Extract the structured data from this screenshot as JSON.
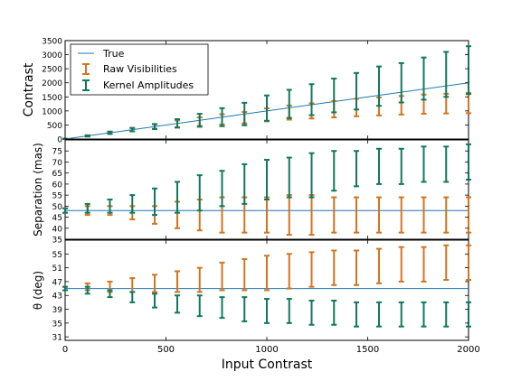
{
  "colors": {
    "true": "#1f77b4",
    "raw": "#d7731d",
    "kernel": "#0f7a5b",
    "axis": "#000000",
    "background": "#ffffff"
  },
  "legend": {
    "placement": "upper-left",
    "entries": [
      "True",
      "Raw Visibilities",
      "Kernel Amplitudes"
    ]
  },
  "chart_data": {
    "type": "errorbar",
    "x": [
      0,
      111,
      222,
      333,
      444,
      556,
      667,
      778,
      889,
      1000,
      1111,
      1222,
      1333,
      1444,
      1556,
      1667,
      1778,
      1889,
      2000
    ],
    "xlabel": "Input Contrast",
    "xlim": [
      0,
      2000
    ],
    "xticks": [
      0,
      500,
      1000,
      1500,
      2000
    ],
    "panels": [
      {
        "name": "contrast",
        "ylabel": "Contrast",
        "ylim": [
          0,
          3500
        ],
        "yticks": [
          0,
          500,
          1000,
          1500,
          2000,
          2500,
          3000,
          3500
        ],
        "true": [
          [
            0,
            0
          ],
          [
            2000,
            2000
          ]
        ],
        "raw": {
          "center": [
            0,
            111,
            222,
            333,
            444,
            540,
            620,
            700,
            760,
            860,
            940,
            1000,
            1060,
            1120,
            1160,
            1200,
            1240,
            1260,
            1280
          ],
          "err": [
            10,
            20,
            40,
            60,
            80,
            120,
            150,
            180,
            200,
            230,
            250,
            270,
            290,
            310,
            320,
            330,
            340,
            350,
            360
          ]
        },
        "kernel": {
          "center": [
            0,
            111,
            222,
            333,
            444,
            556,
            667,
            778,
            889,
            1100,
            1250,
            1400,
            1550,
            1700,
            1880,
            2000,
            2150,
            2300,
            2450
          ],
          "err": [
            10,
            20,
            40,
            60,
            90,
            150,
            230,
            320,
            400,
            450,
            500,
            550,
            600,
            650,
            700,
            700,
            750,
            800,
            850
          ]
        }
      },
      {
        "name": "separation",
        "ylabel": "Separation (mas)",
        "ylim": [
          35,
          80
        ],
        "yticks": [
          35,
          40,
          45,
          50,
          55,
          60,
          65,
          70,
          75
        ],
        "true_value": 48,
        "raw": {
          "center": [
            48,
            48,
            48,
            47,
            46,
            46,
            46,
            46,
            46,
            46,
            46,
            46,
            46,
            46,
            46,
            46,
            46,
            46,
            46
          ],
          "err": [
            1,
            2,
            2,
            3,
            4,
            6,
            7,
            8,
            8,
            8,
            9,
            9,
            8,
            8,
            8,
            8,
            8,
            8,
            8
          ]
        },
        "kernel": {
          "center": [
            48,
            49,
            50,
            51,
            52,
            54,
            56,
            58,
            60,
            62,
            63,
            64,
            66,
            67,
            68,
            68,
            69,
            69,
            70
          ],
          "err": [
            1,
            2,
            3,
            4,
            6,
            7,
            8,
            8,
            9,
            9,
            9,
            10,
            9,
            8,
            8,
            8,
            8,
            8,
            8
          ]
        }
      },
      {
        "name": "theta",
        "ylabel": "θ (deg)",
        "ylim": [
          30,
          59
        ],
        "yticks": [
          31,
          35,
          39,
          43,
          47,
          51,
          55
        ],
        "true_value": 45,
        "raw": {
          "center": [
            45,
            45.5,
            45.5,
            46,
            46.5,
            47,
            47.5,
            48.5,
            49,
            49.5,
            50,
            50.5,
            51,
            51,
            51.5,
            52,
            52,
            52.5,
            52.5
          ],
          "err": [
            0.5,
            1,
            1.5,
            2,
            2.5,
            3,
            3.5,
            4,
            4.5,
            5,
            5,
            5,
            5,
            5,
            5,
            5,
            5,
            5,
            5
          ]
        },
        "kernel": {
          "center": [
            45,
            44.5,
            43.5,
            42.5,
            41.5,
            40.5,
            40,
            39.5,
            39,
            38.5,
            38.5,
            38,
            38,
            37.5,
            37.5,
            37.5,
            37.5,
            37.5,
            37.5
          ],
          "err": [
            0.5,
            1,
            1,
            1.5,
            2,
            2.5,
            3,
            3,
            3.5,
            3.5,
            3.5,
            3.5,
            3.5,
            3.5,
            3.5,
            3.5,
            3.5,
            3.5,
            3.5
          ]
        }
      }
    ]
  }
}
